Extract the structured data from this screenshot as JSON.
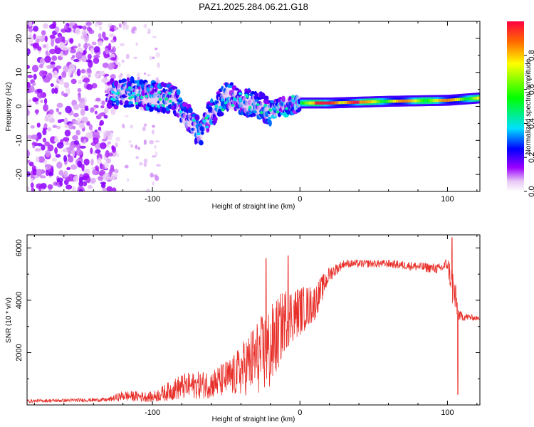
{
  "title": "PAZ1.2025.284.06.21.G18",
  "chart_data": [
    {
      "type": "heatmap",
      "name": "spectrogram",
      "xlabel": "Height of straight line (km)",
      "ylabel": "Frequency (Hz)",
      "xlim": [
        -185,
        122
      ],
      "ylim": [
        -25,
        25
      ],
      "xticks": [
        -100,
        0,
        100
      ],
      "yticks": [
        -20,
        -10,
        0,
        10,
        20
      ],
      "colorbar": {
        "label": "Normalized spectral amplitude",
        "range": [
          0,
          1
        ],
        "ticks": [
          "0.0",
          "0.2",
          "0.4",
          "0.6",
          "0.8"
        ]
      },
      "ridge": [
        {
          "x": -128,
          "f": 3.5
        },
        {
          "x": -115,
          "f": 4
        },
        {
          "x": -100,
          "f": 3
        },
        {
          "x": -85,
          "f": 2
        },
        {
          "x": -75,
          "f": -4
        },
        {
          "x": -68,
          "f": -8
        },
        {
          "x": -60,
          "f": -2
        },
        {
          "x": -50,
          "f": 3
        },
        {
          "x": -40,
          "f": 2
        },
        {
          "x": -30,
          "f": 0
        },
        {
          "x": -20,
          "f": -1
        },
        {
          "x": -10,
          "f": 0
        },
        {
          "x": 0,
          "f": 1
        },
        {
          "x": 20,
          "f": 1
        },
        {
          "x": 60,
          "f": 1.5
        },
        {
          "x": 100,
          "f": 1.8
        },
        {
          "x": 122,
          "f": 2.5
        }
      ]
    },
    {
      "type": "line",
      "name": "snr",
      "xlabel": "Height of straight line (km)",
      "ylabel": "SNR (10 * v/v)",
      "xlim": [
        -185,
        122
      ],
      "ylim": [
        0,
        6500
      ],
      "xticks": [
        -100,
        0,
        100
      ],
      "yticks": [
        2000,
        4000,
        6000
      ],
      "series": [
        {
          "name": "SNR",
          "color": "#e8302a",
          "envelope": [
            {
              "x": -185,
              "mean": 150,
              "amp": 60
            },
            {
              "x": -130,
              "mean": 200,
              "amp": 80
            },
            {
              "x": -120,
              "mean": 350,
              "amp": 200
            },
            {
              "x": -100,
              "mean": 300,
              "amp": 200
            },
            {
              "x": -80,
              "mean": 700,
              "amp": 500
            },
            {
              "x": -60,
              "mean": 800,
              "amp": 550
            },
            {
              "x": -45,
              "mean": 1100,
              "amp": 800
            },
            {
              "x": -30,
              "mean": 1800,
              "amp": 1400
            },
            {
              "x": -20,
              "mean": 2100,
              "amp": 1700
            },
            {
              "x": -10,
              "mean": 3300,
              "amp": 1200
            },
            {
              "x": 10,
              "mean": 3900,
              "amp": 700
            },
            {
              "x": 20,
              "mean": 5000,
              "amp": 300
            },
            {
              "x": 30,
              "mean": 5400,
              "amp": 150
            },
            {
              "x": 60,
              "mean": 5400,
              "amp": 150
            },
            {
              "x": 95,
              "mean": 5200,
              "amp": 200
            },
            {
              "x": 100,
              "mean": 5400,
              "amp": 250
            },
            {
              "x": 104,
              "mean": 4400,
              "amp": 900
            },
            {
              "x": 108,
              "mean": 3400,
              "amp": 200
            },
            {
              "x": 122,
              "mean": 3300,
              "amp": 60
            }
          ],
          "spikes": [
            {
              "x": 103,
              "y": 6400
            },
            {
              "x": 107,
              "y": 400
            },
            {
              "x": -8,
              "y": 5700
            },
            {
              "x": -23,
              "y": 5600
            }
          ]
        }
      ]
    }
  ]
}
